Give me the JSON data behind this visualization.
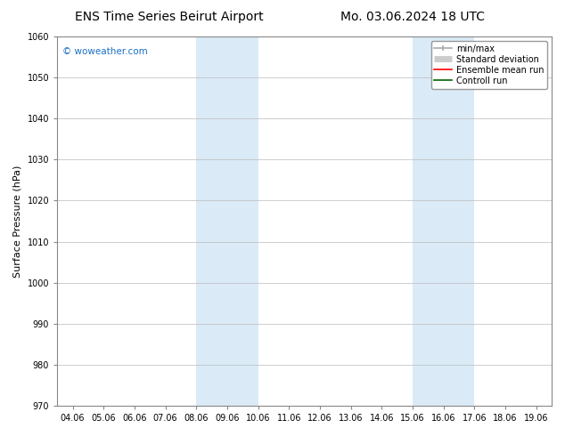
{
  "title_left": "ENS Time Series Beirut Airport",
  "title_right": "Mo. 03.06.2024 18 UTC",
  "ylabel": "Surface Pressure (hPa)",
  "ylim": [
    970,
    1060
  ],
  "yticks": [
    970,
    980,
    990,
    1000,
    1010,
    1020,
    1030,
    1040,
    1050,
    1060
  ],
  "xtick_labels": [
    "04.06",
    "05.06",
    "06.06",
    "07.06",
    "08.06",
    "09.06",
    "10.06",
    "11.06",
    "12.06",
    "13.06",
    "14.06",
    "15.06",
    "16.06",
    "17.06",
    "18.06",
    "19.06"
  ],
  "xtick_positions": [
    0,
    1,
    2,
    3,
    4,
    5,
    6,
    7,
    8,
    9,
    10,
    11,
    12,
    13,
    14,
    15
  ],
  "xlim": [
    -0.5,
    15.5
  ],
  "shaded_regions": [
    {
      "xstart": 4,
      "xend": 6,
      "color": "#daeaf7"
    },
    {
      "xstart": 11,
      "xend": 13,
      "color": "#daeaf7"
    }
  ],
  "watermark_text": "© woweather.com",
  "watermark_color": "#1a6fc4",
  "background_color": "#ffffff",
  "plot_bg_color": "#ffffff",
  "grid_color": "#bbbbbb",
  "legend_entries": [
    {
      "label": "min/max",
      "color": "#aaaaaa",
      "lw": 1.2
    },
    {
      "label": "Standard deviation",
      "color": "#cccccc",
      "lw": 5
    },
    {
      "label": "Ensemble mean run",
      "color": "#ff0000",
      "lw": 1.2
    },
    {
      "label": "Controll run",
      "color": "#006400",
      "lw": 1.2
    }
  ],
  "title_fontsize": 10,
  "tick_fontsize": 7,
  "label_fontsize": 8,
  "legend_fontsize": 7,
  "watermark_fontsize": 7.5
}
